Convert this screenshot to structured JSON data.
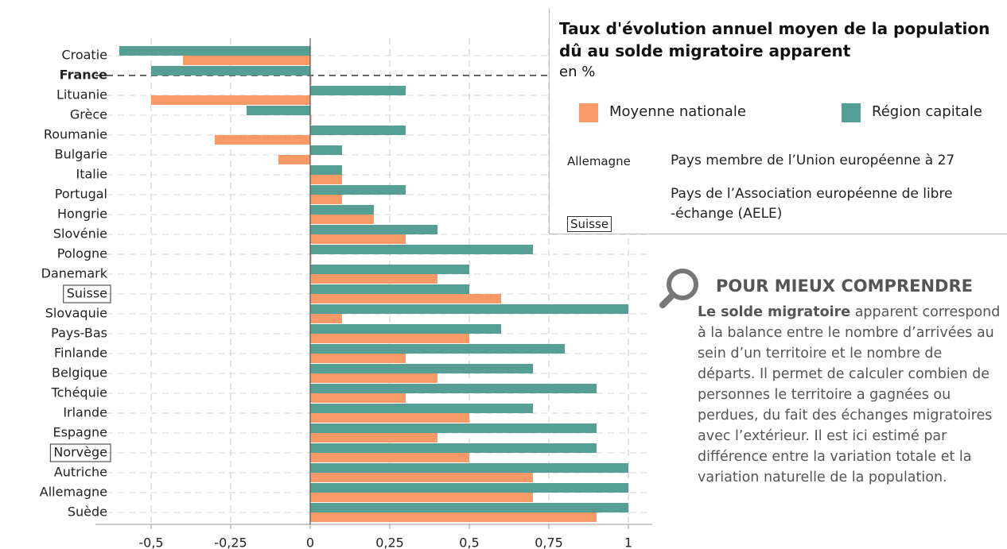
{
  "chart_data": {
    "type": "hbar",
    "title": "Taux d'évolution annuel moyen de la population dû au solde migratoire apparent",
    "unit": "en %",
    "categories": [
      "Croatie",
      "France",
      "Lituanie",
      "Grèce",
      "Roumanie",
      "Bulgarie",
      "Italie",
      "Portugal",
      "Hongrie",
      "Slovénie",
      "Pologne",
      "Danemark",
      "Suisse",
      "Slovaquie",
      "Pays-Bas",
      "Finlande",
      "Belgique",
      "Tchéquie",
      "Irlande",
      "Espagne",
      "Norvège",
      "Autriche",
      "Allemagne",
      "Suède"
    ],
    "bold_categories": [
      1
    ],
    "boxed_categories": [
      12,
      20
    ],
    "series": [
      {
        "name": "Moyenne nationale",
        "color": "#f79a67",
        "values": [
          -0.4,
          0,
          -0.5,
          0,
          -0.3,
          -0.1,
          0.1,
          0.1,
          0.2,
          0.3,
          0,
          0.4,
          0.6,
          0.1,
          0.5,
          0.3,
          0.4,
          0.3,
          0.5,
          0.4,
          0.5,
          0.7,
          0.7,
          0.9
        ]
      },
      {
        "name": "Région capitale",
        "color": "#559f94",
        "values": [
          -0.6,
          -0.5,
          0.3,
          -0.2,
          0.3,
          0.1,
          0.1,
          0.3,
          0.2,
          0.4,
          0.7,
          0.5,
          0.5,
          1,
          0.6,
          0.8,
          0.7,
          0.9,
          0.7,
          0.9,
          0.9,
          1,
          1,
          1
        ]
      }
    ],
    "xlim": [
      -0.675,
      1.075
    ],
    "xticks": [
      {
        "value": -0.5,
        "label": "-0,5"
      },
      {
        "value": -0.25,
        "label": "-0,25"
      },
      0,
      {
        "value": 0.25,
        "label": "0,25"
      },
      {
        "value": 0.5,
        "label": "0,5"
      },
      {
        "value": 0.75,
        "label": "0,75"
      },
      1
    ],
    "grid": true,
    "key": [
      {
        "sample": "Allemagne",
        "boxed": false,
        "lines": [
          "Pays membre de l’Union européenne à 27"
        ]
      },
      {
        "sample": "Suisse",
        "boxed": true,
        "lines": [
          "Pays de l’Association européenne de libre",
          "-échange (AELE)"
        ]
      }
    ]
  },
  "sidebar": {
    "title": "POUR MIEUX COMPRENDRE",
    "body_bold": "Le solde migratoire",
    "body": " apparent correspond à la balance entre le nombre d’arrivées au sein d’un territoire et le nombre de départs. Il permet  de calculer combien de personnes le territoire a gagnées ou perdues, du fait des échanges migratoires avec l’extérieur. Il est ici estimé par différence entre la variation totale et la variation naturelle de la population."
  }
}
